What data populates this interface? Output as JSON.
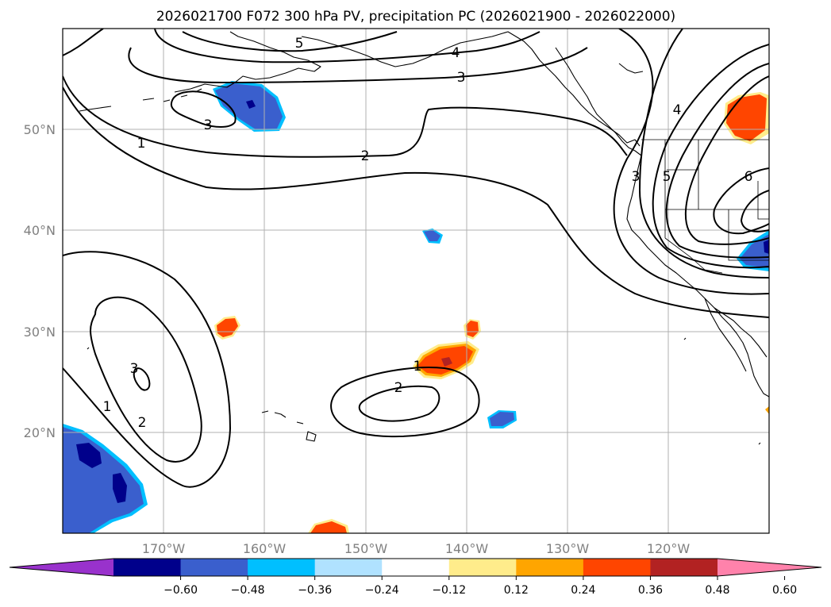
{
  "title": "2026021700 F072 300 hPa PV, precipitation PC (2026021900 - 2026022000)",
  "x_axis_labels": [
    "170°W",
    "160°W",
    "150°W",
    "140°W",
    "130°W",
    "120°W"
  ],
  "y_axis_labels": [
    "50°N",
    "40°N",
    "30°N",
    "20°N"
  ],
  "colorbar": {
    "tick_labels": [
      "−0.60",
      "−0.48",
      "−0.36",
      "−0.24",
      "−0.12",
      "0.12",
      "0.24",
      "0.36",
      "0.48",
      "0.60"
    ],
    "colors": [
      "#9932cc",
      "#00008b",
      "#3a5fcd",
      "#00bfff",
      "#b0e2ff",
      "#ffffff",
      "#ffec8b",
      "#ffa500",
      "#ff4500",
      "#b22222",
      "#ff82ab"
    ]
  },
  "contour_labels": [
    "5",
    "4",
    "3",
    "3",
    "2",
    "1",
    "3",
    "5",
    "6",
    "4",
    "3",
    "2",
    "1",
    "2",
    "1"
  ],
  "colors": {
    "strong_neg": "#00008b",
    "neg": "#3a5fcd",
    "weak_neg": "#00bfff",
    "pos": "#ff4500",
    "weak_pos": "#ffa500",
    "faint_pos": "#ffec8b"
  }
}
